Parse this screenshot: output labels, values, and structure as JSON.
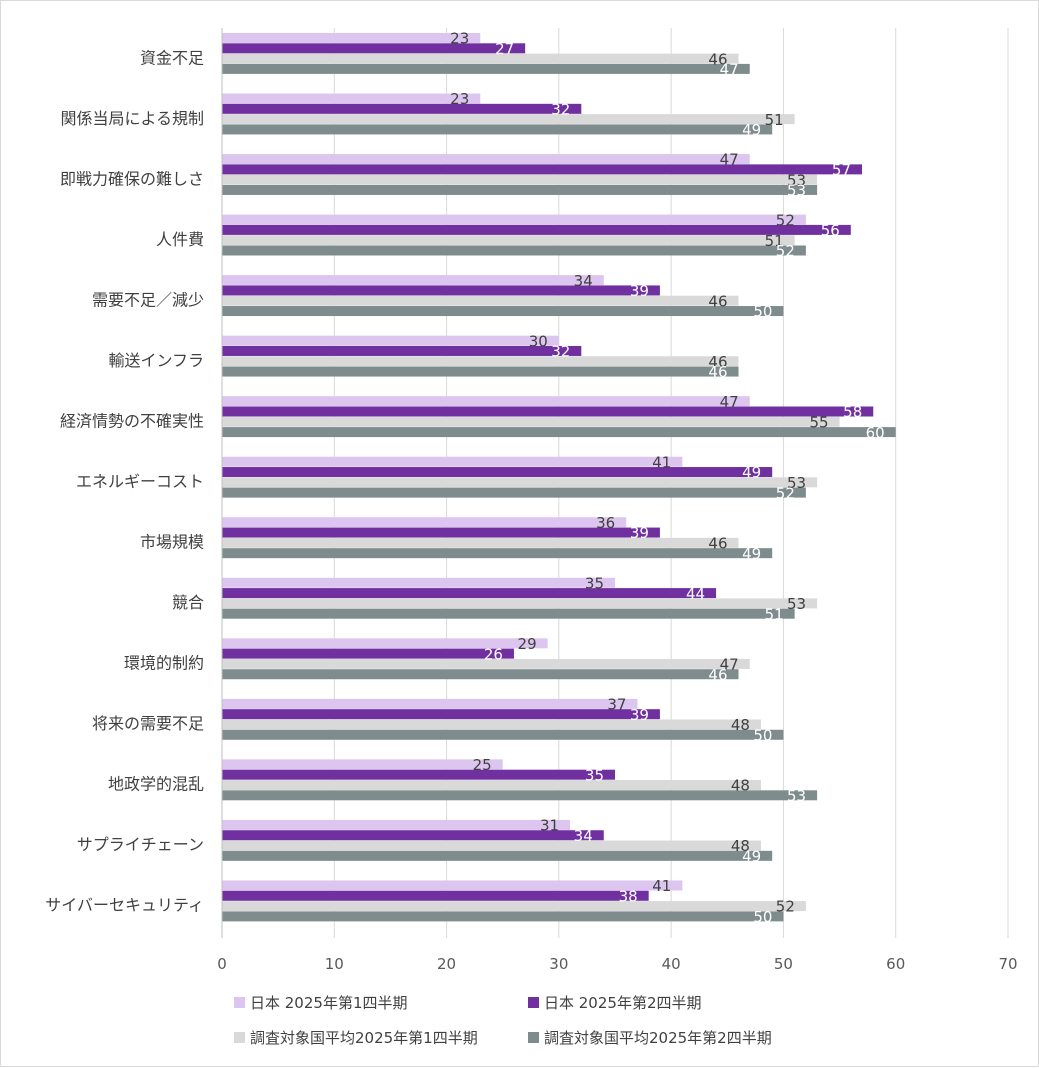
{
  "chart_data": {
    "type": "bar",
    "orientation": "horizontal",
    "categories": [
      "資金不足",
      "関係当局による規制",
      "即戦力確保の難しさ",
      "人件費",
      "需要不足／減少",
      "輸送インフラ",
      "経済情勢の不確実性",
      "エネルギーコスト",
      "市場規模",
      "競合",
      "環境的制約",
      "将来の需要不足",
      "地政学的混乱",
      "サプライチェーン",
      "サイバーセキュリティ"
    ],
    "series": [
      {
        "name": "日本 2025年第1四半期",
        "color": "#dcc5ee",
        "label_color": "#404040",
        "values": [
          23,
          23,
          47,
          52,
          34,
          30,
          47,
          41,
          36,
          35,
          29,
          37,
          25,
          31,
          41
        ]
      },
      {
        "name": "日本 2025年第2四半期",
        "color": "#7030a0",
        "label_color": "#ffffff",
        "values": [
          27,
          32,
          57,
          56,
          39,
          32,
          58,
          49,
          39,
          44,
          26,
          39,
          35,
          34,
          38
        ]
      },
      {
        "name": "調査対象国平均2025年第1四半期",
        "color": "#d9d9d9",
        "label_color": "#404040",
        "values": [
          46,
          51,
          53,
          51,
          46,
          46,
          55,
          53,
          46,
          53,
          47,
          48,
          48,
          48,
          52
        ]
      },
      {
        "name": "調査対象国平均2025年第2四半期",
        "color": "#7f8c8d",
        "label_color": "#ffffff",
        "values": [
          47,
          49,
          53,
          52,
          50,
          46,
          60,
          52,
          49,
          51,
          46,
          50,
          53,
          49,
          50
        ]
      }
    ],
    "xlim": [
      0,
      70
    ],
    "xticks": [
      0,
      10,
      20,
      30,
      40,
      50,
      60,
      70
    ],
    "grid": "vertical",
    "legend_position": "bottom",
    "data_labels": true
  }
}
